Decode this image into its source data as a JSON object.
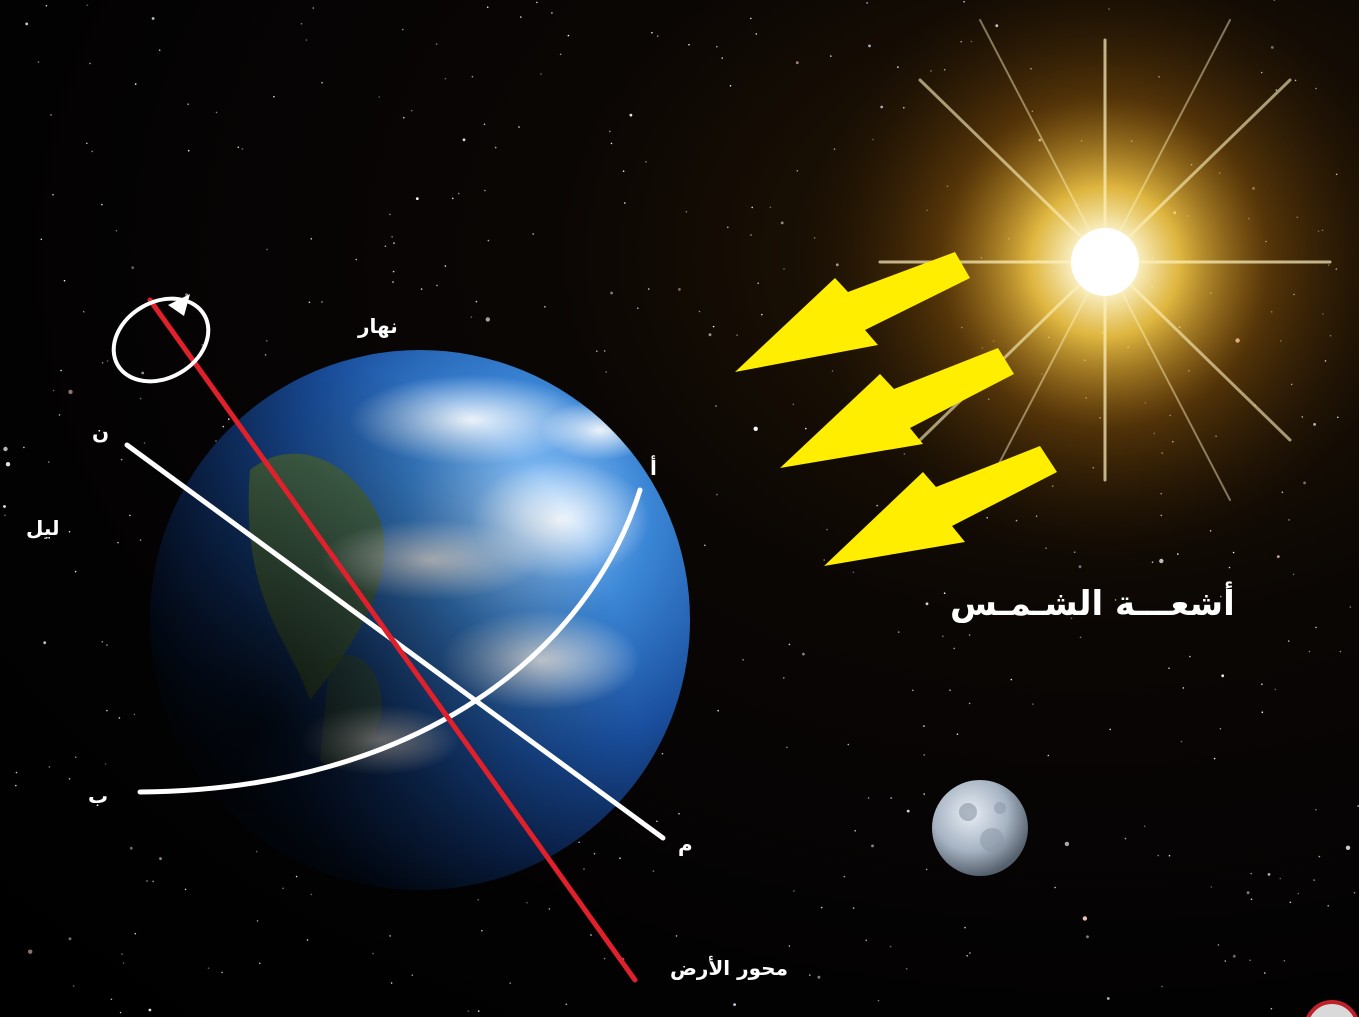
{
  "labels": {
    "day": "نهار",
    "night": "ليل",
    "point_n": "ن",
    "point_a": "أ",
    "point_b": "ب",
    "point_m": "م",
    "sun_rays": "أشعـــة الشـمـس",
    "earth_axis": "محور الأرض"
  },
  "colors": {
    "axis": "#e0202a",
    "arrows": "#ffee00",
    "lines": "#ffffff",
    "ocean": "#1f63b8"
  }
}
